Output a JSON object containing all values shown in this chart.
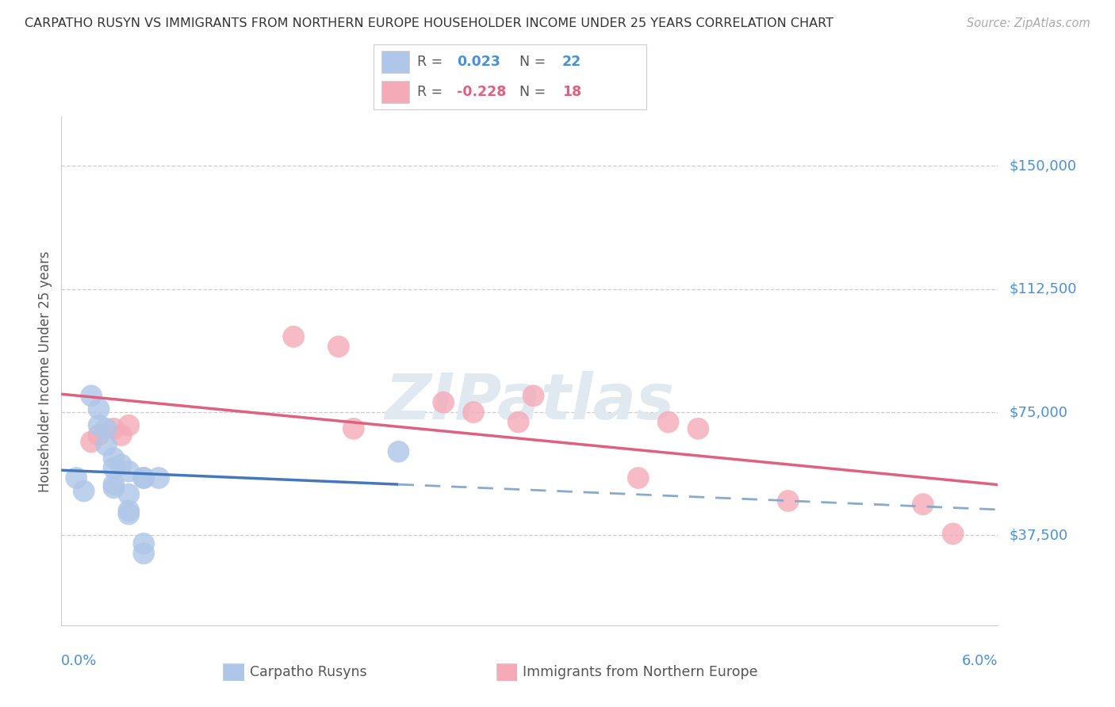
{
  "title": "CARPATHO RUSYN VS IMMIGRANTS FROM NORTHERN EUROPE HOUSEHOLDER INCOME UNDER 25 YEARS CORRELATION CHART",
  "source": "Source: ZipAtlas.com",
  "ylabel": "Householder Income Under 25 years",
  "ytick_values": [
    37500,
    75000,
    112500,
    150000
  ],
  "ytick_labels": [
    "$37,500",
    "$75,000",
    "$112,500",
    "$150,000"
  ],
  "ymin": 10000,
  "ymax": 165000,
  "xmin": -0.0005,
  "xmax": 0.062,
  "legend1_R": "0.023",
  "legend1_N": "22",
  "legend2_R": "-0.228",
  "legend2_N": "18",
  "blue_fill": "#aec6e8",
  "pink_fill": "#f5aab8",
  "blue_line_solid": "#4477bb",
  "blue_line_dash": "#88aacc",
  "pink_line": "#e06080",
  "background_color": "#ffffff",
  "grid_color": "#cccccc",
  "title_color": "#333333",
  "axis_label_color": "#555555",
  "right_label_color": "#4a90d9",
  "source_color": "#aaaaaa",
  "watermark_color": "#e0e8f0",
  "blue_scatter_x": [
    0.0005,
    0.001,
    0.0015,
    0.002,
    0.002,
    0.0025,
    0.0025,
    0.003,
    0.003,
    0.003,
    0.003,
    0.0035,
    0.004,
    0.004,
    0.004,
    0.004,
    0.005,
    0.005,
    0.005,
    0.005,
    0.006,
    0.022
  ],
  "blue_scatter_y": [
    55000,
    51000,
    80000,
    76000,
    71000,
    70000,
    65000,
    61000,
    58000,
    53000,
    52000,
    59000,
    57000,
    50000,
    45000,
    44000,
    35000,
    55000,
    55000,
    32000,
    55000,
    63000
  ],
  "pink_scatter_x": [
    0.0015,
    0.002,
    0.003,
    0.0035,
    0.004,
    0.015,
    0.018,
    0.019,
    0.025,
    0.027,
    0.03,
    0.031,
    0.038,
    0.04,
    0.042,
    0.048,
    0.057,
    0.059
  ],
  "pink_scatter_y": [
    66000,
    68000,
    70000,
    68000,
    71000,
    98000,
    95000,
    70000,
    78000,
    75000,
    72000,
    80000,
    55000,
    72000,
    70000,
    48000,
    47000,
    38000
  ]
}
